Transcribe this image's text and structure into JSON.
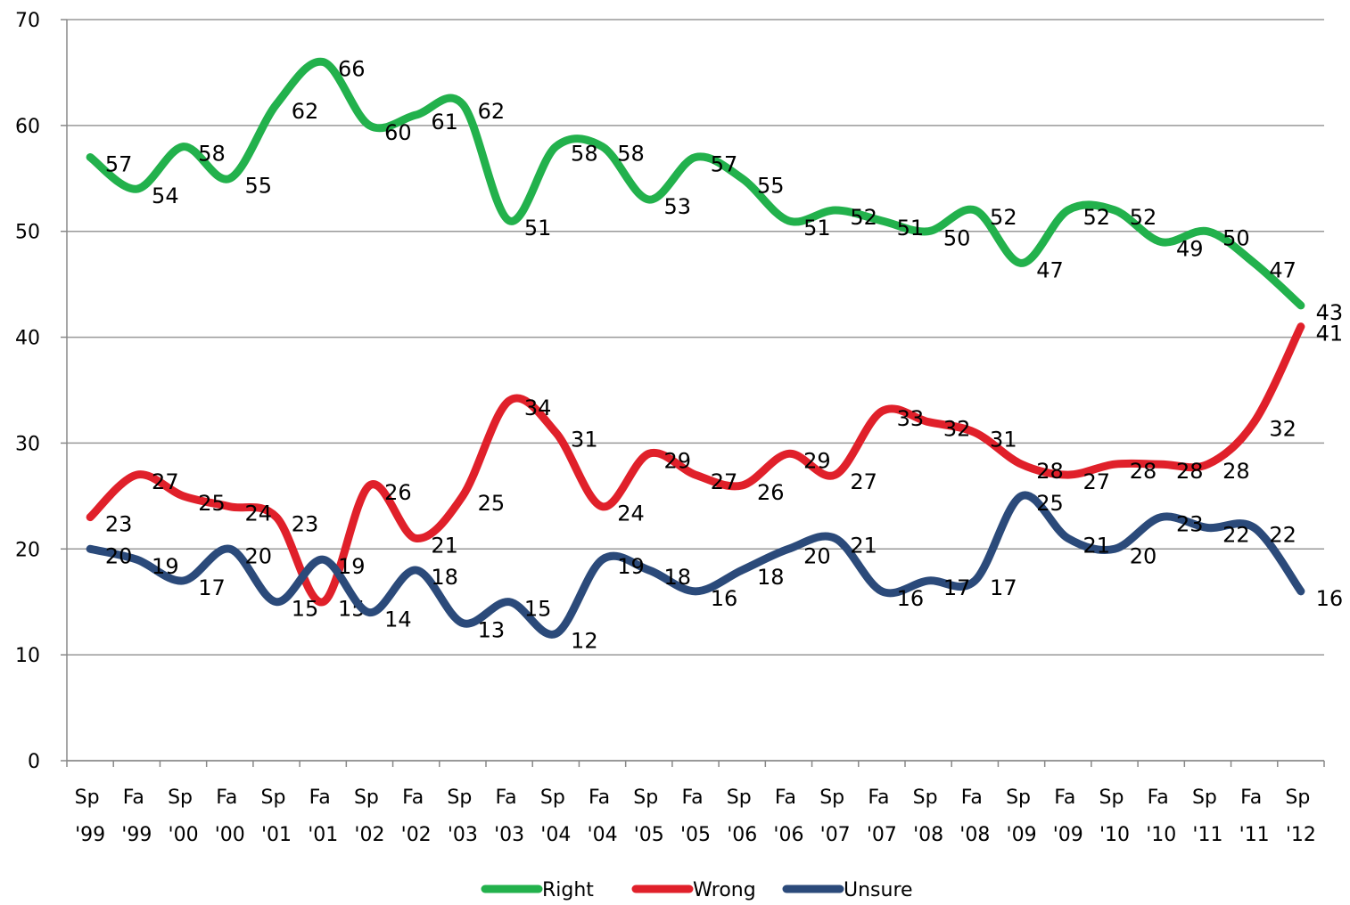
{
  "chart_data": {
    "type": "line",
    "categories": [
      "Sp '99",
      "Fa '99",
      "Sp '00",
      "Fa '00",
      "Sp '01",
      "Fa '01",
      "Sp '02",
      "Fa '02",
      "Sp '03",
      "Fa '03",
      "Sp '04",
      "Fa '04",
      "Sp '05",
      "Fa '05",
      "Sp '06",
      "Fa '06",
      "Sp '07",
      "Fa '07",
      "Sp '08",
      "Fa '08",
      "Sp '09",
      "Fa '09",
      "Sp '10",
      "Fa '10",
      "Sp '11",
      "Fa '11",
      "Sp '12"
    ],
    "series": [
      {
        "name": "Right",
        "color": "#22b14c",
        "values": [
          57,
          54,
          58,
          55,
          62,
          66,
          60,
          61,
          62,
          51,
          58,
          58,
          53,
          57,
          55,
          51,
          52,
          51,
          50,
          52,
          47,
          52,
          52,
          49,
          50,
          47,
          43
        ]
      },
      {
        "name": "Wrong",
        "color": "#e0202a",
        "values": [
          23,
          27,
          25,
          24,
          23,
          15,
          26,
          21,
          25,
          34,
          31,
          24,
          29,
          27,
          26,
          29,
          27,
          33,
          32,
          31,
          28,
          27,
          28,
          28,
          28,
          32,
          41
        ]
      },
      {
        "name": "Unsure",
        "color": "#2b4a7a",
        "values": [
          20,
          19,
          17,
          20,
          15,
          19,
          14,
          18,
          13,
          15,
          12,
          19,
          18,
          16,
          18,
          20,
          21,
          16,
          17,
          17,
          25,
          21,
          20,
          23,
          22,
          22,
          16
        ]
      }
    ],
    "ylim": [
      0,
      70
    ],
    "yticks": [
      0,
      10,
      20,
      30,
      40,
      50,
      60,
      70
    ],
    "grid": true,
    "legend": "bottom"
  }
}
